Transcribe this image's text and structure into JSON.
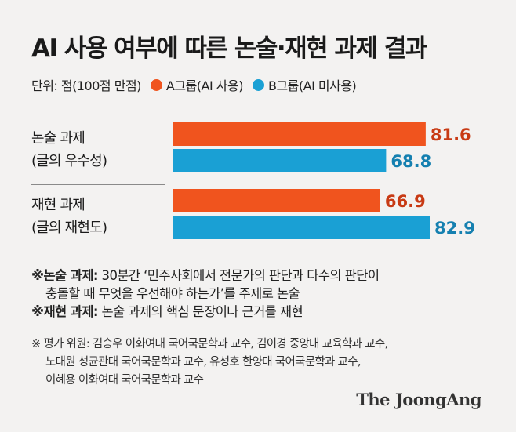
{
  "title": "AI 사용 여부에 따른 논술·재현 과제 결과",
  "legend": {
    "unit": "단위: 점(100점 만점)",
    "items": [
      {
        "label": "A그룹(AI 사용)",
        "color": "#f0541e"
      },
      {
        "label": "B그룹(AI 미사용)",
        "color": "#1aa0d4"
      }
    ]
  },
  "chart_data": {
    "type": "bar",
    "orientation": "horizontal",
    "categories": [
      [
        "논술 과제",
        "(글의 우수성)"
      ],
      [
        "재현 과제",
        "(글의 재현도)"
      ]
    ],
    "series": [
      {
        "name": "A그룹(AI 사용)",
        "values": [
          81.6,
          66.9
        ],
        "color": "#f0541e",
        "label_color": "#c83a14"
      },
      {
        "name": "B그룹(AI 미사용)",
        "values": [
          68.8,
          82.9
        ],
        "color": "#1aa0d4",
        "label_color": "#1580b0"
      }
    ],
    "value_labels": [
      [
        "81.6",
        "66.9"
      ],
      [
        "68.8",
        "82.9"
      ]
    ],
    "xlim": [
      0,
      100
    ],
    "grid": false,
    "legend_position": "top-left"
  },
  "notes": {
    "line1_bold": "※논술 과제:",
    "line1_text": " 30분간 ‘민주사회에서 전문가의 판단과 다수의 판단이",
    "line2_text": "충돌할 때 무엇을 우선해야 하는가’를 주제로 논술",
    "line3_bold": "※재현 과제:",
    "line3_text": " 논술 과제의 핵심 문장이나 근거를 재현"
  },
  "sources": {
    "line1": "※ 평가 위원: 김승우 이화여대 국어국문학과 교수, 김이경 중앙대 교육학과 교수,",
    "line2": "노대원 성균관대 국어국문학과 교수, 유성호 한양대 국어국문학과 교수,",
    "line3": "이혜용 이화여대 국어국문학과 교수"
  },
  "brand": "The JoongAng"
}
